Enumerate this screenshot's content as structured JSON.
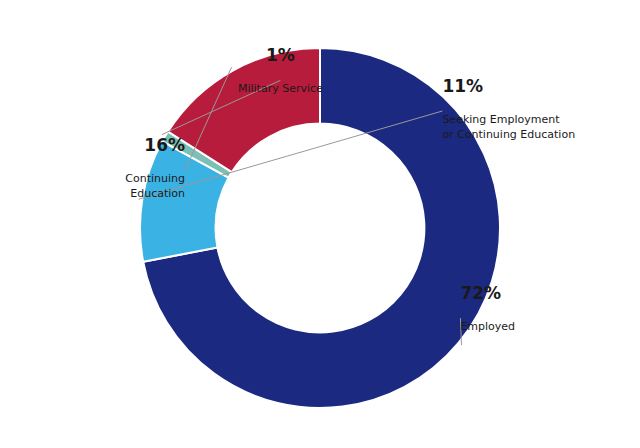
{
  "chart_data": {
    "type": "donut",
    "categories": [
      "Employed",
      "Seeking Employment\nor Continuing Education",
      "Military Service",
      "Continuing\nEducation"
    ],
    "values": [
      72,
      11,
      1,
      16
    ],
    "value_labels": [
      "72%",
      "11%",
      "1%",
      "16%"
    ],
    "colors": [
      "#1b2a80",
      "#3ab2e3",
      "#7bbfb5",
      "#b81c3c"
    ],
    "data_labels": true
  }
}
